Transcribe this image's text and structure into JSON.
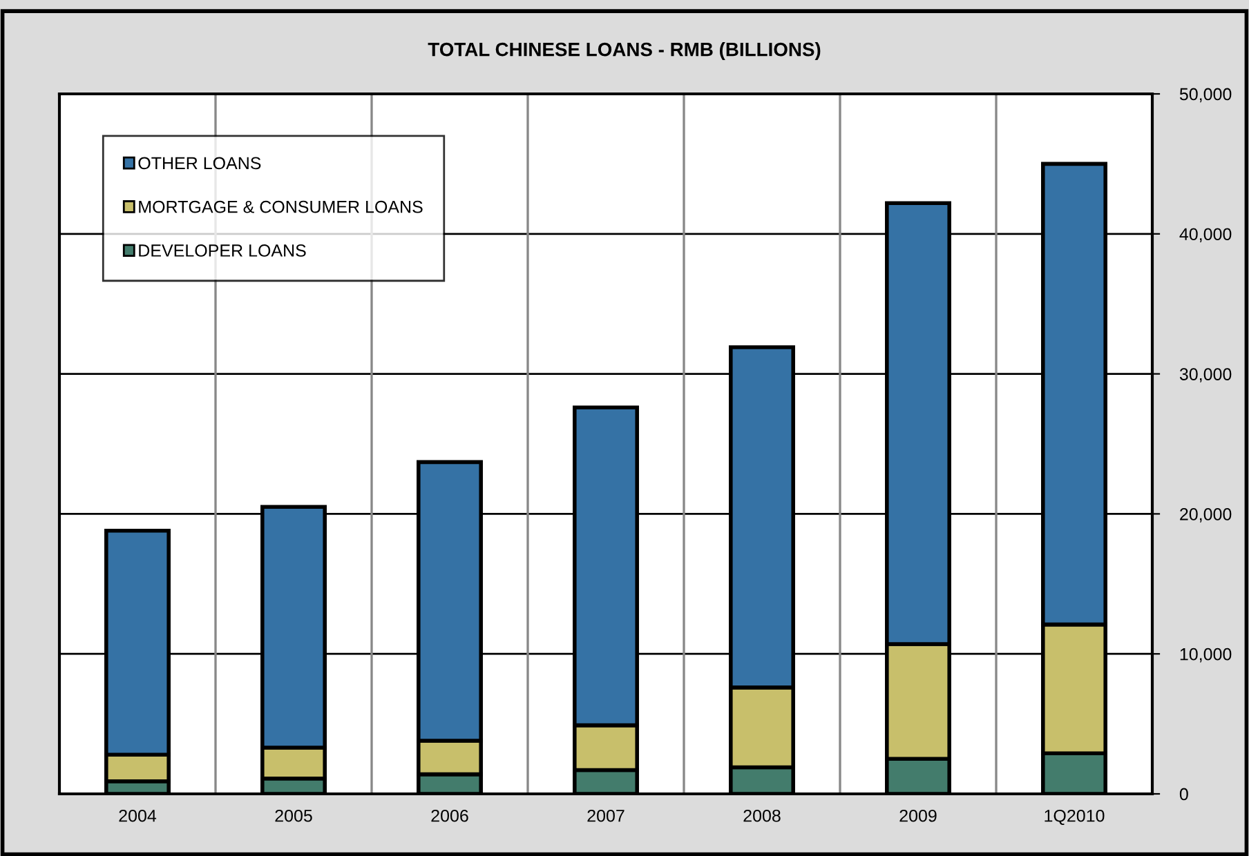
{
  "chart_data": {
    "type": "bar",
    "stacked": true,
    "title": "TOTAL CHINESE LOANS - RMB (BILLIONS)",
    "categories": [
      "2004",
      "2005",
      "2006",
      "2007",
      "2008",
      "2009",
      "1Q2010"
    ],
    "series": [
      {
        "name": "DEVELOPER LOANS",
        "color": "#437c6c",
        "values": [
          900,
          1100,
          1400,
          1700,
          1900,
          2500,
          2900
        ]
      },
      {
        "name": "MORTGAGE & CONSUMER LOANS",
        "color": "#c8bf6b",
        "values": [
          1900,
          2200,
          2400,
          3200,
          5700,
          8200,
          9200
        ]
      },
      {
        "name": "OTHER LOANS",
        "color": "#3572a5",
        "values": [
          16000,
          17200,
          19900,
          22700,
          24300,
          31500,
          32900
        ]
      }
    ],
    "ylim": [
      0,
      50000
    ],
    "yticks": [
      {
        "value": 0,
        "label": "0"
      },
      {
        "value": 10000,
        "label": "10,000"
      },
      {
        "value": 20000,
        "label": "20,000"
      },
      {
        "value": 30000,
        "label": "30,000"
      },
      {
        "value": 40000,
        "label": "40,000"
      },
      {
        "value": 50000,
        "label": "50,000"
      }
    ],
    "grid": true,
    "legend": "top left"
  }
}
